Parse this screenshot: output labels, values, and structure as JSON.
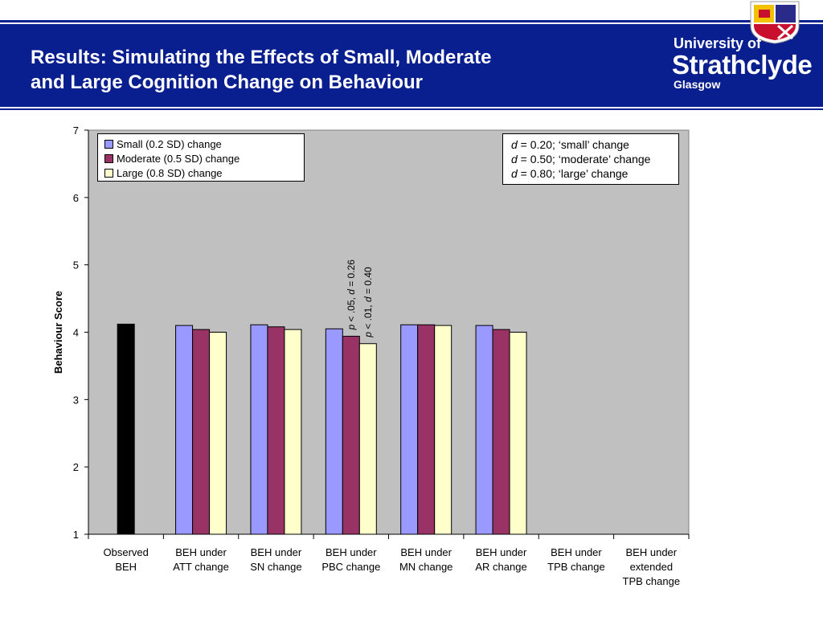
{
  "slide": {
    "title_line1": "Results: Simulating the Effects of Small, Moderate",
    "title_line2": "and Large Cognition Change on Behaviour",
    "logo": {
      "line1": "University of",
      "line2": "Strathclyde",
      "line3": "Glasgow"
    },
    "colors": {
      "band": "#0a1f8f",
      "white": "#ffffff"
    }
  },
  "notes": [
    {
      "symbol": "d",
      "text": " = 0.20; ‘small’ change"
    },
    {
      "symbol": "d",
      "text": " = 0.50; ‘moderate’ change"
    },
    {
      "symbol": "d",
      "text": " = 0.80; ‘large’ change"
    }
  ],
  "chart_data": {
    "type": "bar",
    "ylabel": "Behaviour Score",
    "ylim": [
      1,
      7
    ],
    "yticks": [
      1,
      2,
      3,
      4,
      5,
      6,
      7
    ],
    "categories": [
      [
        "Observed",
        "BEH"
      ],
      [
        "BEH under",
        "ATT change"
      ],
      [
        "BEH under",
        "SN change"
      ],
      [
        "BEH under",
        "PBC change"
      ],
      [
        "BEH under",
        "MN change"
      ],
      [
        "BEH under",
        "AR change"
      ],
      [
        "BEH under",
        "TPB change"
      ],
      [
        "BEH under",
        "extended",
        "TPB change"
      ]
    ],
    "observed": {
      "category_index": 0,
      "value": 4.12,
      "color": "#000000"
    },
    "series": [
      {
        "name": "Small (0.2 SD) change",
        "color": "#9999ff",
        "values": [
          null,
          4.1,
          4.11,
          4.05,
          4.11,
          4.1,
          null,
          null
        ]
      },
      {
        "name": "Moderate (0.5 SD) change",
        "color": "#993366",
        "values": [
          null,
          4.04,
          4.08,
          3.94,
          4.11,
          4.04,
          null,
          null
        ]
      },
      {
        "name": "Large (0.8 SD) change",
        "color": "#ffffcc",
        "values": [
          null,
          4.0,
          4.04,
          3.83,
          4.1,
          4.0,
          null,
          null
        ]
      }
    ],
    "annotations": [
      {
        "category_index": 3,
        "series_index": 1,
        "pre": "p",
        "mid": " < .05, ",
        "sym": "d",
        "post": " = 0.26"
      },
      {
        "category_index": 3,
        "series_index": 2,
        "pre": "p",
        "mid": " < .01, ",
        "sym": "d",
        "post": " = 0.40"
      }
    ],
    "plot_background": "#c0c0c0",
    "legend_position": "top-left",
    "grid": false
  }
}
